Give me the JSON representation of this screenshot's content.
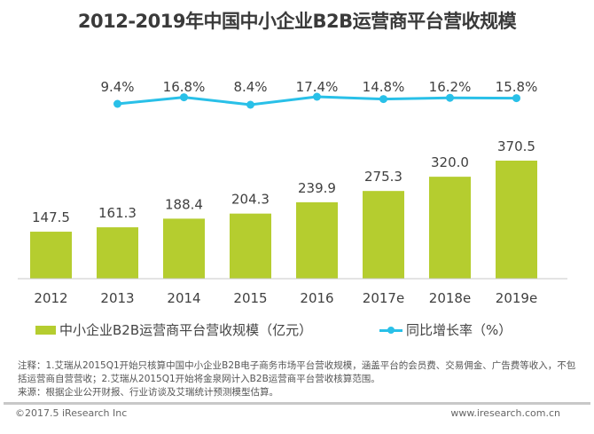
{
  "title": "2012-2019年中国中小企业B2B运营商平台营收规模",
  "chart_data": {
    "type": "bar+line",
    "title": "2012-2019年中国中小企业B2B运营商平台营收规模",
    "categories": [
      "2012",
      "2013",
      "2014",
      "2015",
      "2016",
      "2017e",
      "2018e",
      "2019e"
    ],
    "series": [
      {
        "name": "中小企业B2B运营商平台营收规模（亿元）",
        "type": "bar",
        "color": "#b5cd2f",
        "values": [
          147.5,
          161.3,
          188.4,
          204.3,
          239.9,
          275.3,
          320.0,
          370.5
        ],
        "labels": [
          "147.5",
          "161.3",
          "188.4",
          "204.3",
          "239.9",
          "275.3",
          "320.0",
          "370.5"
        ]
      },
      {
        "name": "同比增长率（%）",
        "type": "line",
        "color": "#29c0e8",
        "x": [
          "2013",
          "2014",
          "2015",
          "2016",
          "2017e",
          "2018e",
          "2019e"
        ],
        "values": [
          9.4,
          16.8,
          8.4,
          17.4,
          14.8,
          16.2,
          15.8
        ],
        "labels": [
          "9.4%",
          "16.8%",
          "8.4%",
          "17.4%",
          "14.8%",
          "16.2%",
          "15.8%"
        ]
      }
    ],
    "xlabel": "",
    "ylabel": "",
    "ylim": [
      0,
      420
    ],
    "grid": false,
    "legend": "bottom"
  },
  "legend": {
    "bar_label": "中小企业B2B运营商平台营收规模（亿元）",
    "line_label": "同比增长率（%）"
  },
  "notes": {
    "line1": "注释：1.艾瑞从2015Q1开始只核算中国中小企业B2B电子商务市场平台营收规模，涵盖平台的会员费、交易佣金、广告费等收入，不包",
    "line2": "括运营商自营营收；2.艾瑞从2015Q1开始将金泉网计入B2B运营商平台营收核算范围。",
    "line3": "来源：根据企业公开财报、行业访谈及艾瑞统计预测模型估算。"
  },
  "footer": {
    "copyright": "©2017.5 iResearch Inc",
    "website": "www.iresearch.com.cn"
  }
}
